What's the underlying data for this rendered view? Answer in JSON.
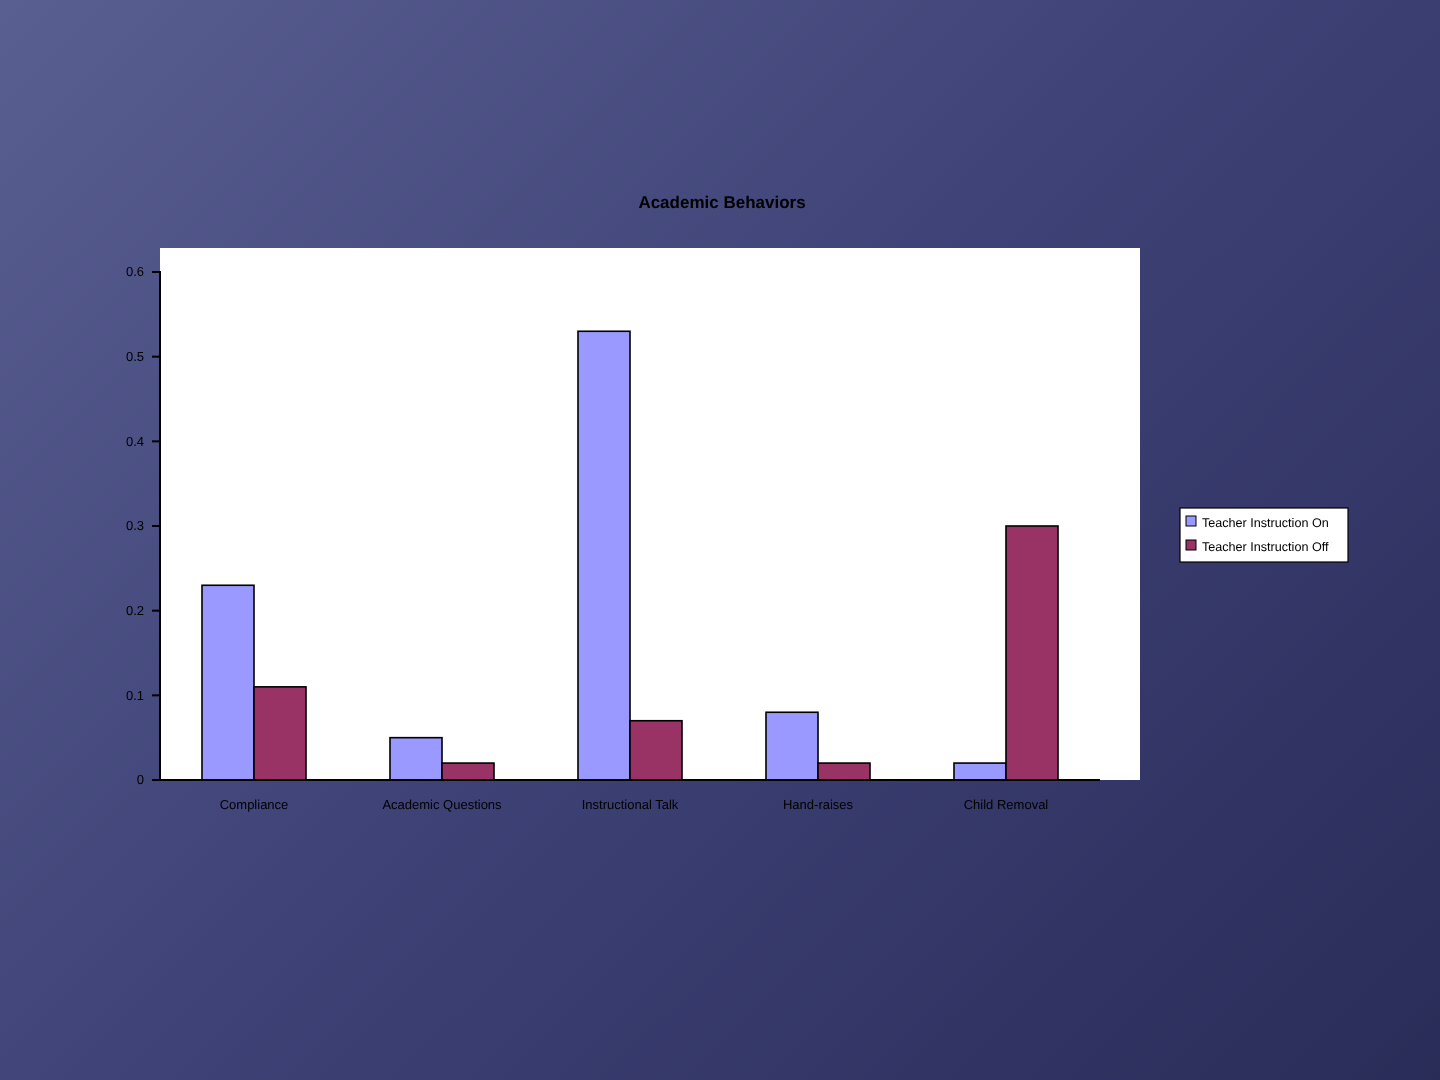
{
  "chart_data": {
    "type": "bar",
    "title": "Academic Behaviors",
    "categories": [
      "Compliance",
      "Academic Questions",
      "Instructional Talk",
      "Hand-raises",
      "Child Removal"
    ],
    "series": [
      {
        "name": "Teacher Instruction On",
        "color": "#9999ff",
        "values": [
          0.23,
          0.05,
          0.53,
          0.08,
          0.02
        ]
      },
      {
        "name": "Teacher Instruction Off",
        "color": "#993366",
        "values": [
          0.11,
          0.02,
          0.07,
          0.02,
          0.3
        ]
      }
    ],
    "ylim": [
      0,
      0.6
    ],
    "yticks": [
      0,
      0.1,
      0.2,
      0.3,
      0.4,
      0.5,
      0.6
    ],
    "grid": false,
    "legend": "right"
  }
}
